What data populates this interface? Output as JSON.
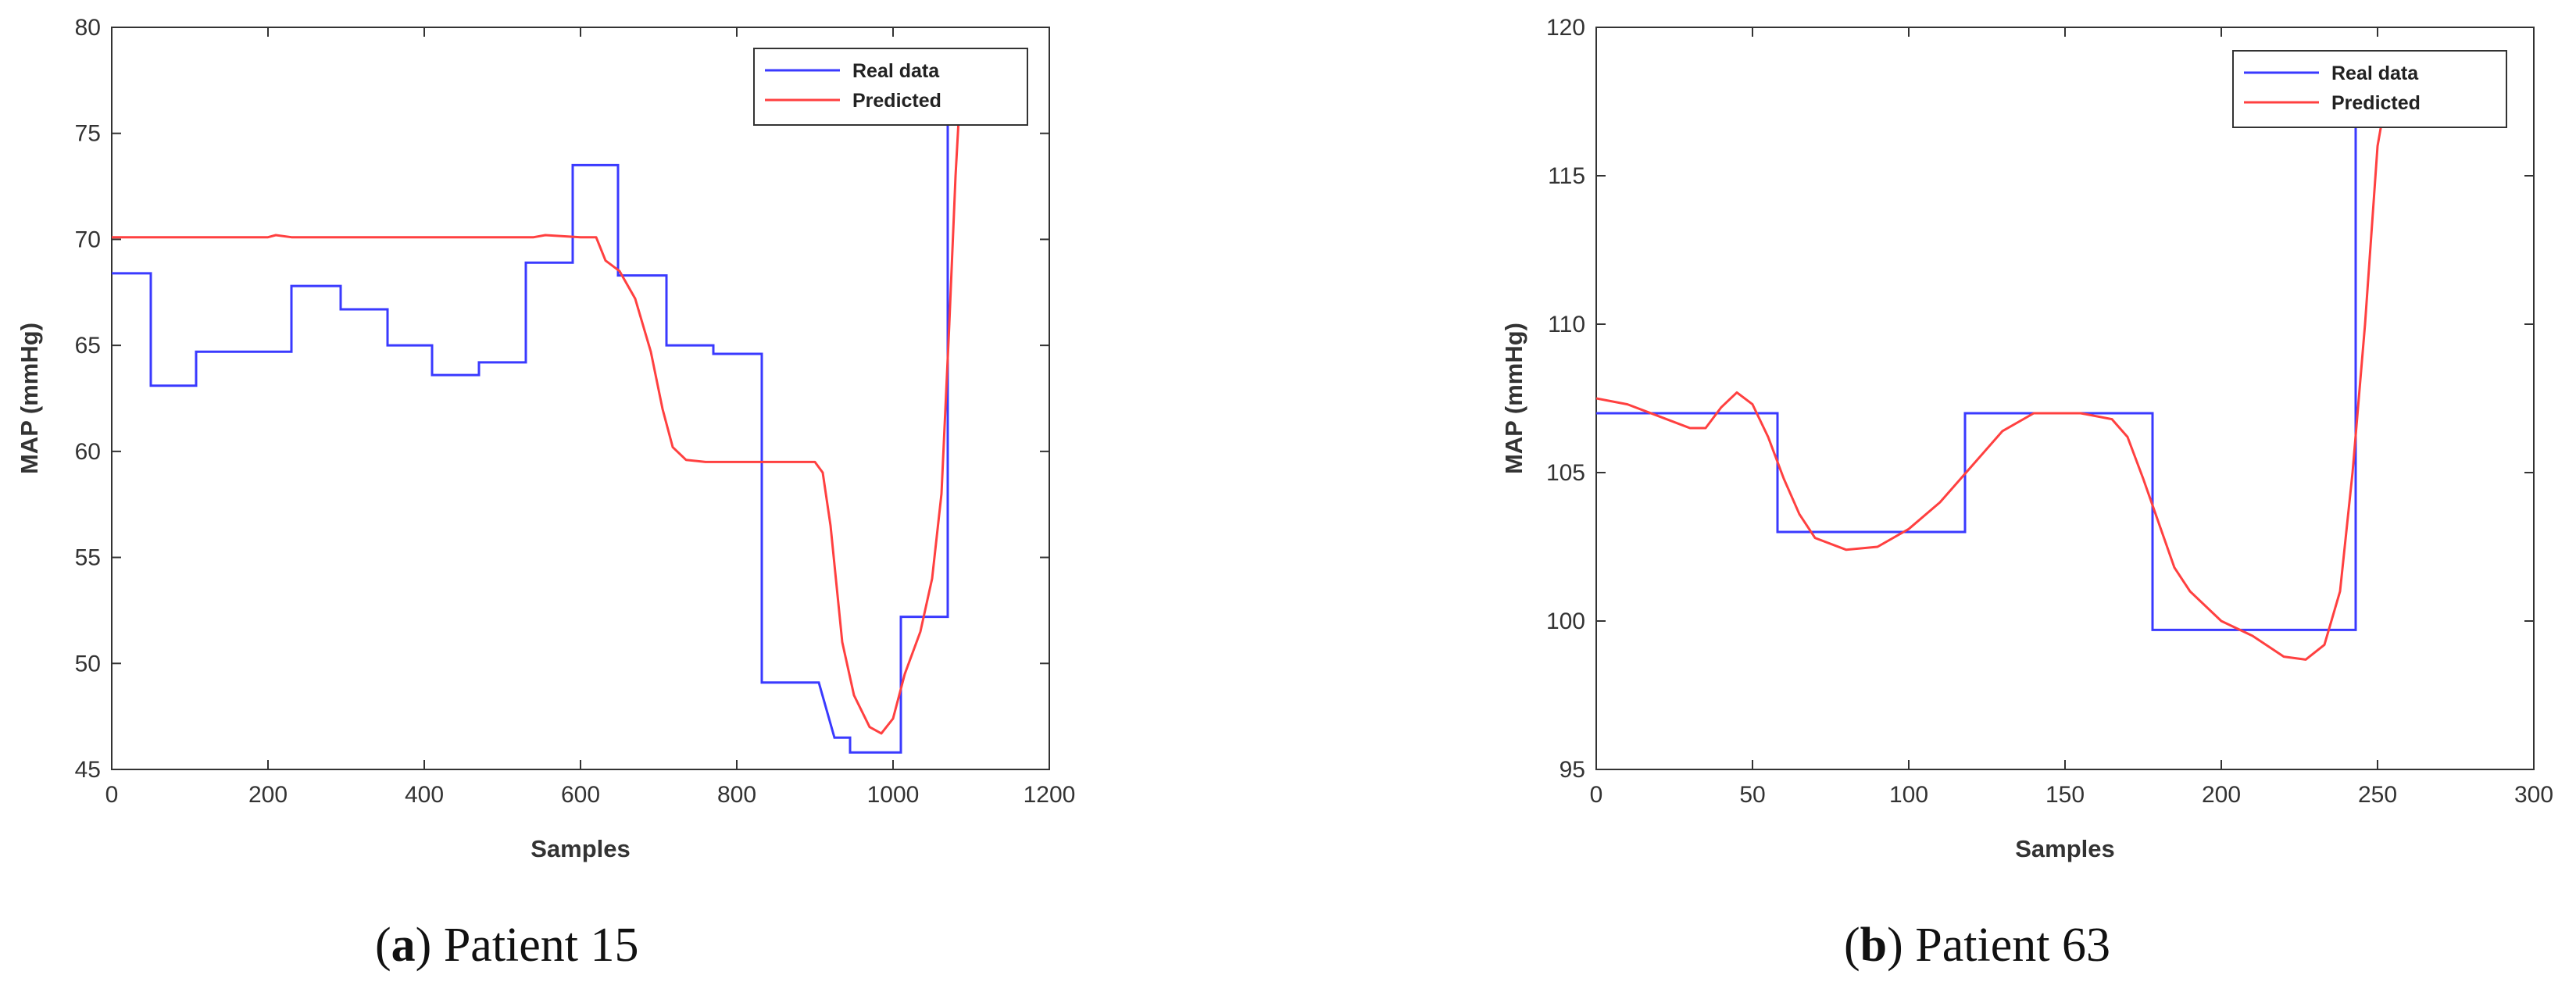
{
  "colors": {
    "real": "#3a3aff",
    "predicted": "#ff4040",
    "axis": "#333333"
  },
  "legend": {
    "real_label": "Real data",
    "predicted_label": "Predicted"
  },
  "captions": [
    {
      "letter": "a",
      "text": "Patient 15"
    },
    {
      "letter": "b",
      "text": "Patient 63"
    }
  ],
  "chart_data": [
    {
      "type": "line",
      "xlabel": "Samples",
      "ylabel": "MAP (mmHg)",
      "xlim": [
        0,
        1200
      ],
      "ylim": [
        45,
        80
      ],
      "xticks": [
        0,
        200,
        400,
        600,
        800,
        1000,
        1200
      ],
      "yticks": [
        45,
        50,
        55,
        60,
        65,
        70,
        75,
        80
      ],
      "grid": false,
      "legend_position": "top-right",
      "series": [
        {
          "name": "Real data",
          "color": "#3a3aff",
          "points": [
            [
              0,
              68.4
            ],
            [
              50,
              68.4
            ],
            [
              50,
              63.1
            ],
            [
              108,
              63.1
            ],
            [
              108,
              64.7
            ],
            [
              168,
              64.7
            ],
            [
              230,
              64.7
            ],
            [
              230,
              67.8
            ],
            [
              293,
              67.8
            ],
            [
              293,
              66.7
            ],
            [
              353,
              66.7
            ],
            [
              353,
              65.0
            ],
            [
              410,
              65.0
            ],
            [
              410,
              63.6
            ],
            [
              470,
              63.6
            ],
            [
              470,
              64.2
            ],
            [
              530,
              64.2
            ],
            [
              530,
              68.9
            ],
            [
              590,
              68.9
            ],
            [
              590,
              73.5
            ],
            [
              648,
              73.5
            ],
            [
              648,
              68.3
            ],
            [
              710,
              68.3
            ],
            [
              710,
              65.0
            ],
            [
              770,
              65.0
            ],
            [
              770,
              64.6
            ],
            [
              832,
              64.6
            ],
            [
              832,
              49.1
            ],
            [
              905,
              49.1
            ],
            [
              925,
              46.5
            ],
            [
              945,
              46.5
            ],
            [
              945,
              45.8
            ],
            [
              1010,
              45.8
            ],
            [
              1010,
              52.2
            ],
            [
              1070,
              52.2
            ],
            [
              1070,
              77.8
            ],
            [
              1078,
              77.8
            ]
          ]
        },
        {
          "name": "Predicted",
          "color": "#ff4040",
          "points": [
            [
              0,
              70.1
            ],
            [
              100,
              70.1
            ],
            [
              200,
              70.1
            ],
            [
              210,
              70.2
            ],
            [
              230,
              70.1
            ],
            [
              400,
              70.1
            ],
            [
              540,
              70.1
            ],
            [
              555,
              70.2
            ],
            [
              600,
              70.1
            ],
            [
              620,
              70.1
            ],
            [
              632,
              69.0
            ],
            [
              650,
              68.5
            ],
            [
              670,
              67.2
            ],
            [
              690,
              64.7
            ],
            [
              705,
              62.0
            ],
            [
              718,
              60.2
            ],
            [
              735,
              59.6
            ],
            [
              760,
              59.5
            ],
            [
              900,
              59.5
            ],
            [
              910,
              59.0
            ],
            [
              920,
              56.5
            ],
            [
              935,
              51.0
            ],
            [
              950,
              48.5
            ],
            [
              970,
              47.0
            ],
            [
              985,
              46.7
            ],
            [
              1000,
              47.4
            ],
            [
              1015,
              49.5
            ],
            [
              1035,
              51.5
            ],
            [
              1050,
              54.0
            ],
            [
              1062,
              58.0
            ],
            [
              1072,
              66.0
            ],
            [
              1080,
              73.0
            ],
            [
              1086,
              77.0
            ]
          ]
        }
      ]
    },
    {
      "type": "line",
      "xlabel": "Samples",
      "ylabel": "MAP (mmHg)",
      "xlim": [
        0,
        300
      ],
      "ylim": [
        95,
        120
      ],
      "xticks": [
        0,
        50,
        100,
        150,
        200,
        250,
        300
      ],
      "yticks": [
        95,
        100,
        105,
        110,
        115,
        120
      ],
      "grid": false,
      "legend_position": "top-right",
      "series": [
        {
          "name": "Real data",
          "color": "#3a3aff",
          "points": [
            [
              0,
              107.0
            ],
            [
              58,
              107.0
            ],
            [
              58,
              103.0
            ],
            [
              118,
              103.0
            ],
            [
              118,
              107.0
            ],
            [
              178,
              107.0
            ],
            [
              178,
              99.7
            ],
            [
              243,
              99.7
            ],
            [
              243,
              117.5
            ],
            [
              247,
              117.5
            ]
          ]
        },
        {
          "name": "Predicted",
          "color": "#ff4040",
          "points": [
            [
              0,
              107.5
            ],
            [
              10,
              107.3
            ],
            [
              20,
              106.9
            ],
            [
              30,
              106.5
            ],
            [
              35,
              106.5
            ],
            [
              40,
              107.2
            ],
            [
              45,
              107.7
            ],
            [
              50,
              107.3
            ],
            [
              55,
              106.2
            ],
            [
              60,
              104.8
            ],
            [
              65,
              103.6
            ],
            [
              70,
              102.8
            ],
            [
              80,
              102.4
            ],
            [
              90,
              102.5
            ],
            [
              100,
              103.1
            ],
            [
              110,
              104.0
            ],
            [
              120,
              105.2
            ],
            [
              130,
              106.4
            ],
            [
              140,
              107.0
            ],
            [
              150,
              107.0
            ],
            [
              155,
              107.0
            ],
            [
              165,
              106.8
            ],
            [
              170,
              106.2
            ],
            [
              175,
              104.8
            ],
            [
              180,
              103.3
            ],
            [
              185,
              101.8
            ],
            [
              190,
              101.0
            ],
            [
              200,
              100.0
            ],
            [
              210,
              99.5
            ],
            [
              220,
              98.8
            ],
            [
              227,
              98.7
            ],
            [
              233,
              99.2
            ],
            [
              238,
              101.0
            ],
            [
              242,
              105.0
            ],
            [
              246,
              110.0
            ],
            [
              250,
              116.0
            ],
            [
              253,
              117.8
            ]
          ]
        }
      ]
    }
  ]
}
